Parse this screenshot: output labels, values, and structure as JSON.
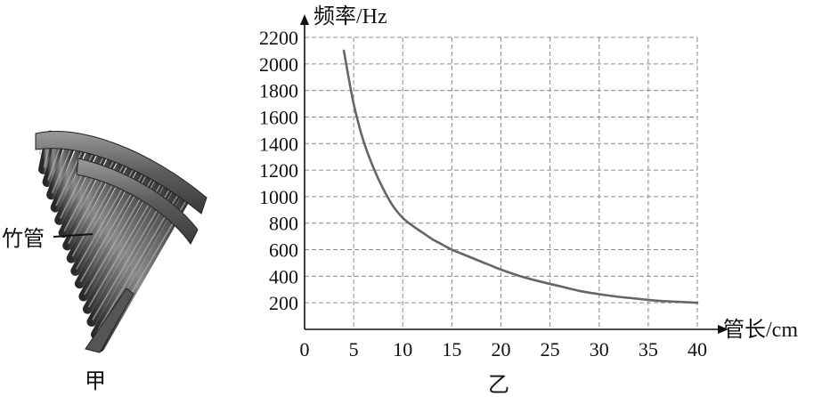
{
  "figure_a": {
    "caption": "甲",
    "pointer_label": "竹管"
  },
  "figure_b": {
    "caption": "乙"
  },
  "chart_data": {
    "type": "line",
    "title": "",
    "xlabel": "管长/cm",
    "ylabel": "频率/Hz",
    "xlim": [
      0,
      40
    ],
    "ylim": [
      0,
      2200
    ],
    "x_ticks": [
      0,
      5,
      10,
      15,
      20,
      25,
      30,
      35,
      40
    ],
    "y_ticks": [
      200,
      400,
      600,
      800,
      1000,
      1200,
      1400,
      1600,
      1800,
      2000,
      2200
    ],
    "grid": true,
    "grid_style": "dashed",
    "series": [
      {
        "color": "#666666",
        "x": [
          4,
          5,
          6,
          7,
          8,
          9,
          10,
          11,
          12,
          13,
          14,
          15,
          16,
          17,
          18,
          19,
          20,
          22,
          24,
          26,
          28,
          30,
          32,
          34,
          36,
          38,
          40
        ],
        "y": [
          2100,
          1700,
          1420,
          1220,
          1060,
          930,
          840,
          780,
          730,
          680,
          640,
          600,
          570,
          540,
          510,
          480,
          450,
          400,
          360,
          325,
          290,
          265,
          245,
          230,
          215,
          208,
          200
        ]
      }
    ]
  }
}
